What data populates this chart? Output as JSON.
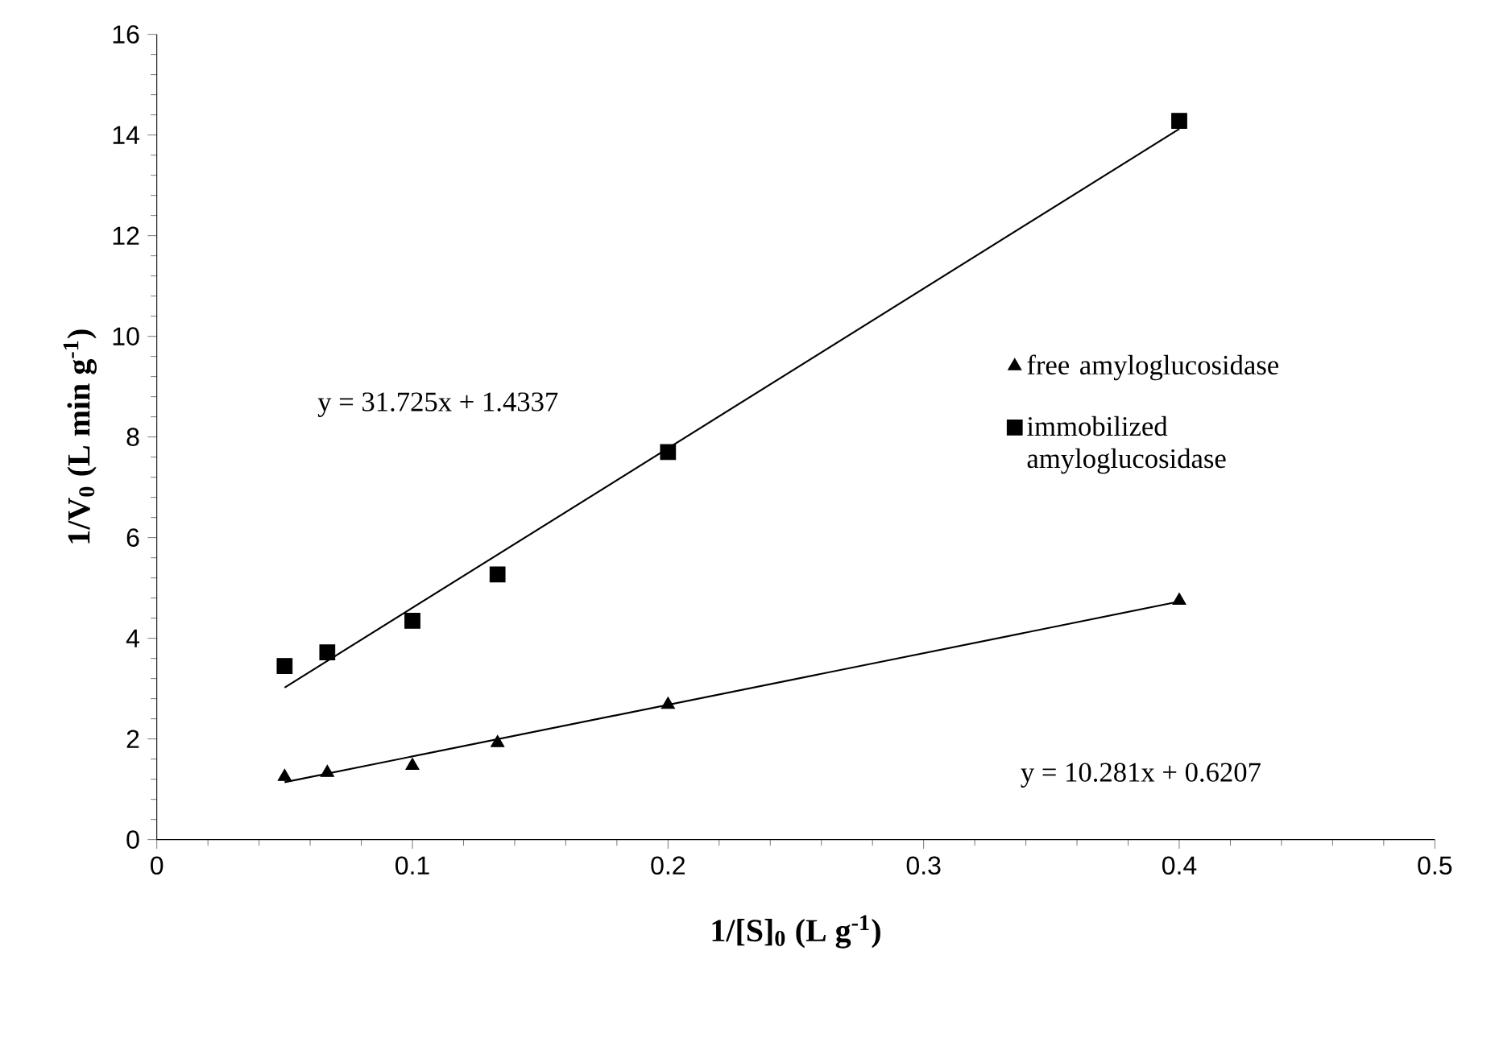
{
  "chart_data": {
    "type": "scatter",
    "xlabel": "1/[S]$_{0}$ (L  g$^{-1}$)",
    "ylabel": "1/V$_{0}$ (L  min  g$^{-1}$)",
    "xlim": [
      0,
      0.5
    ],
    "ylim": [
      0,
      16
    ],
    "xticks": [
      0,
      0.1,
      0.2,
      0.3,
      0.4,
      0.5
    ],
    "yticks": [
      0,
      2,
      4,
      6,
      8,
      10,
      12,
      14,
      16
    ],
    "grid": false,
    "legend": "right",
    "series": [
      {
        "name": "free  amyloglucosidase",
        "color": "#000000",
        "marker": "triangle",
        "x": [
          0.05,
          0.0667,
          0.1,
          0.1333,
          0.2,
          0.4
        ],
        "values": [
          1.25,
          1.33,
          1.47,
          1.92,
          2.68,
          4.75
        ]
      },
      {
        "name": "immobilized amyloglucosidase",
        "color": "#000000",
        "marker": "square",
        "x": [
          0.05,
          0.0667,
          0.1,
          0.1333,
          0.2,
          0.4
        ],
        "values": [
          3.45,
          3.72,
          4.35,
          5.27,
          7.7,
          14.28
        ]
      },
      {
        "type": "line",
        "color": "#000000",
        "marker": "none",
        "x": [
          0.05,
          0.4
        ],
        "values": [
          1.14,
          4.73
        ]
      },
      {
        "type": "line",
        "color": "#000000",
        "marker": "none",
        "x": [
          0.05,
          0.4
        ],
        "values": [
          3.02,
          14.12
        ]
      }
    ],
    "annotations": [
      "y = 31.725x + 1.4337",
      "y = 10.281x + 0.6207"
    ]
  }
}
